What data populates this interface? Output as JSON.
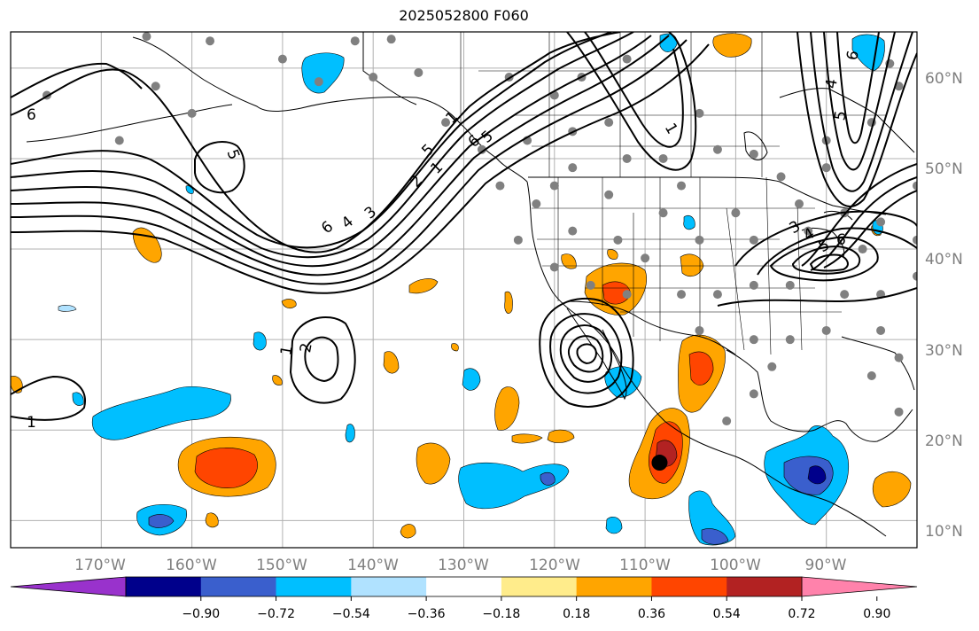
{
  "title": "2025052800 F060",
  "map": {
    "projection": "cylindrical",
    "extent": {
      "lon_min": -180,
      "lon_max": -80,
      "lat_min": 7,
      "lat_max": 64
    },
    "gridlines": true,
    "lon_labels": [
      "170°W",
      "160°W",
      "150°W",
      "140°W",
      "130°W",
      "120°W",
      "110°W",
      "100°W",
      "90°W"
    ],
    "lat_labels": [
      "60°N",
      "50°N",
      "40°N",
      "30°N",
      "20°N",
      "10°N"
    ],
    "contour_labels": [
      "6",
      "5",
      "6",
      "4",
      "3",
      "2",
      "1",
      "5",
      "1",
      "6",
      "5",
      "2",
      "1",
      "1",
      "6",
      "5",
      "4",
      "3",
      "6",
      "5",
      "4",
      "1"
    ],
    "marker": {
      "lon": -108.4,
      "lat": 16.4,
      "color": "#000000"
    },
    "station_color": "#808080"
  },
  "colorbar": {
    "ticks": [
      "−0.90",
      "−0.72",
      "−0.54",
      "−0.36",
      "−0.18",
      "0.18",
      "0.36",
      "0.54",
      "0.72",
      "0.90"
    ],
    "colors": [
      "#9932cc",
      "#00008b",
      "#3a5fcd",
      "#00bfff",
      "#b0e2ff",
      "#ffffff",
      "#ffec8b",
      "#ffa500",
      "#ff4500",
      "#b22222",
      "#ff82ab"
    ],
    "extend": "both"
  }
}
